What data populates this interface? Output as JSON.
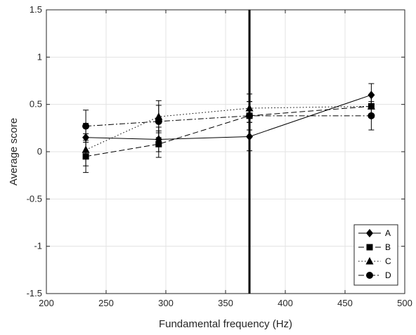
{
  "chart_data": {
    "type": "line",
    "xlabel": "Fundamental frequency (Hz)",
    "ylabel": "Average score",
    "xlim": [
      200,
      500
    ],
    "ylim": [
      -1.5,
      1.5
    ],
    "x_ticks": [
      "200",
      "250",
      "300",
      "350",
      "400",
      "450",
      "500"
    ],
    "y_ticks": [
      "1.5",
      "1",
      "0.5",
      "0",
      "-0.5",
      "-1",
      "-1.5"
    ],
    "grid": true,
    "legend_position": "bottom-right",
    "vertical_reference_line_x": 370,
    "series": [
      {
        "name": "A",
        "marker": "diamond",
        "line_style": "solid",
        "x": [
          233,
          294,
          370,
          472
        ],
        "y": [
          0.15,
          0.13,
          0.16,
          0.6
        ],
        "err": [
          0.15,
          0.13,
          0.15,
          0.12
        ]
      },
      {
        "name": "B",
        "marker": "square",
        "line_style": "dashed",
        "x": [
          233,
          294,
          370,
          472
        ],
        "y": [
          -0.05,
          0.08,
          0.38,
          0.48
        ],
        "err": [
          0.17,
          0.14,
          0.15,
          0.12
        ]
      },
      {
        "name": "C",
        "marker": "triangle",
        "line_style": "dotted",
        "x": [
          233,
          294,
          370,
          472
        ],
        "y": [
          0.02,
          0.37,
          0.46,
          0.48
        ],
        "err": [
          0.17,
          0.17,
          0.15,
          0.12
        ]
      },
      {
        "name": "D",
        "marker": "circle",
        "line_style": "dashdot",
        "x": [
          233,
          294,
          370,
          472
        ],
        "y": [
          0.27,
          0.32,
          0.38,
          0.38
        ],
        "err": [
          0.17,
          0.17,
          0.15,
          0.15
        ]
      }
    ]
  }
}
